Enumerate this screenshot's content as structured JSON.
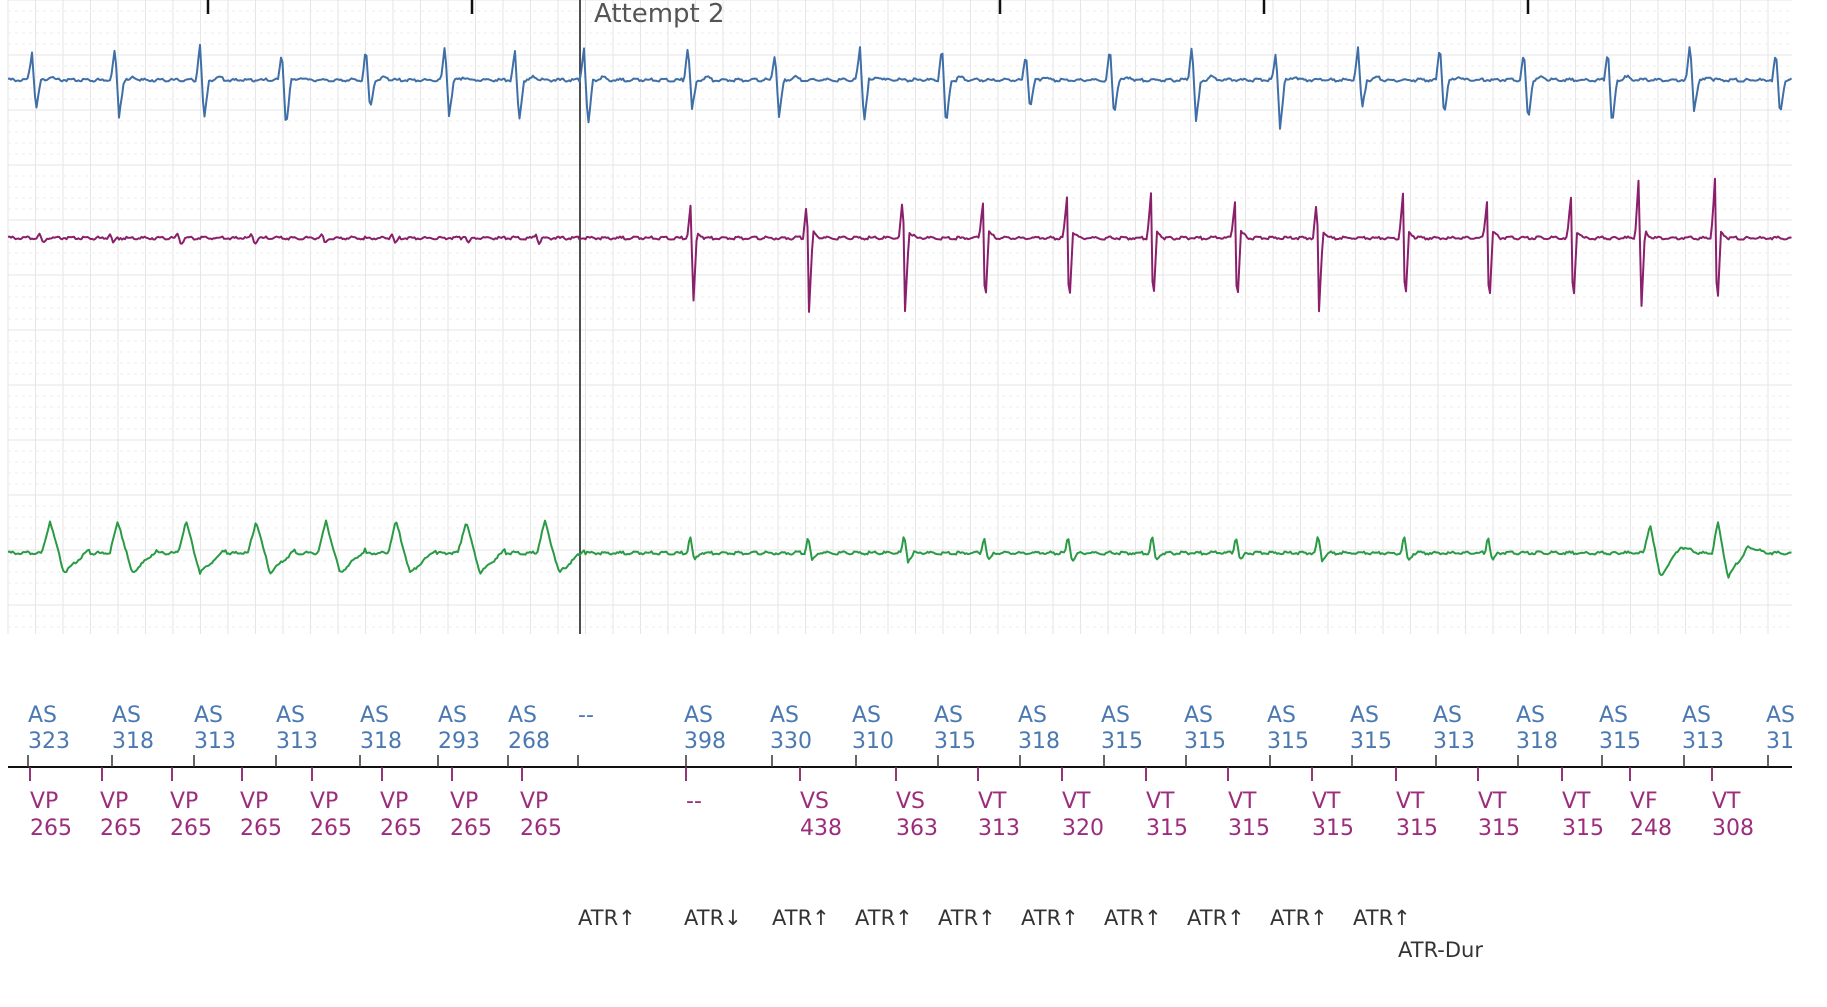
{
  "title": "",
  "attempt_label": "Attempt 2",
  "colors": {
    "atrial": "#3f6fa6",
    "ventricular": "#8a1f6b",
    "shock": "#2a9a45",
    "grid": "#e6e6e6",
    "grid_dotted": "#ececec",
    "atrial_label": "#4a78b0",
    "ventricular_label": "#9c2d7c",
    "event_label": "#333333"
  },
  "atrial_markers": [
    {
      "code": "AS",
      "interval": "323"
    },
    {
      "code": "AS",
      "interval": "318"
    },
    {
      "code": "AS",
      "interval": "313"
    },
    {
      "code": "AS",
      "interval": "313"
    },
    {
      "code": "AS",
      "interval": "318"
    },
    {
      "code": "AS",
      "interval": "293"
    },
    {
      "code": "AS",
      "interval": "268"
    },
    {
      "code": "--",
      "interval": ""
    },
    {
      "code": "AS",
      "interval": "398"
    },
    {
      "code": "AS",
      "interval": "330"
    },
    {
      "code": "AS",
      "interval": "310"
    },
    {
      "code": "AS",
      "interval": "315"
    },
    {
      "code": "AS",
      "interval": "318"
    },
    {
      "code": "AS",
      "interval": "315"
    },
    {
      "code": "AS",
      "interval": "315"
    },
    {
      "code": "AS",
      "interval": "315"
    },
    {
      "code": "AS",
      "interval": "315"
    },
    {
      "code": "AS",
      "interval": "313"
    },
    {
      "code": "AS",
      "interval": "318"
    },
    {
      "code": "AS",
      "interval": "315"
    },
    {
      "code": "AS",
      "interval": "313"
    },
    {
      "code": "AS",
      "interval": "31"
    }
  ],
  "ventricular_markers": [
    {
      "code": "VP",
      "interval": "265"
    },
    {
      "code": "VP",
      "interval": "265"
    },
    {
      "code": "VP",
      "interval": "265"
    },
    {
      "code": "VP",
      "interval": "265"
    },
    {
      "code": "VP",
      "interval": "265"
    },
    {
      "code": "VP",
      "interval": "265"
    },
    {
      "code": "VP",
      "interval": "265"
    },
    {
      "code": "VP",
      "interval": "265"
    },
    {
      "code": "--",
      "interval": ""
    },
    {
      "code": "VS",
      "interval": "438"
    },
    {
      "code": "VS",
      "interval": "363"
    },
    {
      "code": "VT",
      "interval": "313"
    },
    {
      "code": "VT",
      "interval": "320"
    },
    {
      "code": "VT",
      "interval": "315"
    },
    {
      "code": "VT",
      "interval": "315"
    },
    {
      "code": "VT",
      "interval": "315"
    },
    {
      "code": "VT",
      "interval": "315"
    },
    {
      "code": "VT",
      "interval": "315"
    },
    {
      "code": "VT",
      "interval": "315"
    },
    {
      "code": "VF",
      "interval": "248"
    },
    {
      "code": "VT",
      "interval": "308"
    }
  ],
  "event_markers": [
    {
      "label": "ATR↑"
    },
    {
      "label": "ATR↓"
    },
    {
      "label": "ATR↑"
    },
    {
      "label": "ATR↑"
    },
    {
      "label": "ATR↑"
    },
    {
      "label": "ATR↑"
    },
    {
      "label": "ATR↑"
    },
    {
      "label": "ATR↑"
    },
    {
      "label": "ATR↑"
    },
    {
      "label": "ATR↑"
    },
    {
      "label": "ATR-Dur"
    }
  ]
}
